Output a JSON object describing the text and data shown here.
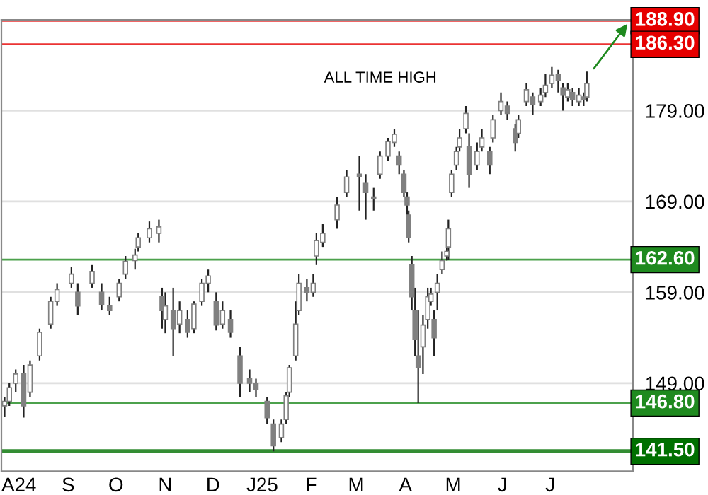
{
  "chart_data": {
    "type": "candlestick",
    "annotations": [
      "ALL TIME HIGH"
    ],
    "color": "#808080",
    "x": [
      "2024-07-23",
      "2024-07-26",
      "2024-07-30",
      "2024-08-04",
      "2024-08-08",
      "2024-08-14",
      "2024-08-21",
      "2024-08-25",
      "2024-09-03",
      "2024-09-07",
      "2024-09-16",
      "2024-09-22",
      "2024-09-27",
      "2024-10-03",
      "2024-10-07",
      "2024-10-13",
      "2024-10-15",
      "2024-10-22",
      "2024-10-28",
      "2024-10-30",
      "2024-11-01",
      "2024-11-06",
      "2024-11-10",
      "2024-11-15",
      "2024-11-19",
      "2024-11-24",
      "2024-11-28",
      "2024-12-03",
      "2024-12-07",
      "2024-12-12",
      "2024-12-18",
      "2024-12-24",
      "2024-12-28",
      "2025-01-04",
      "2025-01-08",
      "2025-01-13",
      "2025-01-16",
      "2025-01-18",
      "2025-01-22",
      "2025-01-24",
      "2025-01-29",
      "2025-02-02",
      "2025-02-04",
      "2025-02-08",
      "2025-02-17",
      "2025-02-23",
      "2025-03-03",
      "2025-03-07",
      "2025-03-12",
      "2025-03-16",
      "2025-03-21",
      "2025-03-25",
      "2025-03-28",
      "2025-03-31",
      "2025-04-02",
      "2025-04-03",
      "2025-04-05",
      "2025-04-07",
      "2025-04-09",
      "2025-04-12",
      "2025-04-15",
      "2025-04-17",
      "2025-04-19",
      "2025-04-21",
      "2025-04-24",
      "2025-04-27",
      "2025-04-28",
      "2025-04-30",
      "2025-05-03",
      "2025-05-05",
      "2025-05-09",
      "2025-05-11",
      "2025-05-16",
      "2025-05-19",
      "2025-05-24",
      "2025-05-26",
      "2025-05-31",
      "2025-06-04",
      "2025-06-09",
      "2025-06-11",
      "2025-06-16",
      "2025-06-20",
      "2025-06-25",
      "2025-06-28",
      "2025-07-02",
      "2025-07-06",
      "2025-07-09",
      "2025-07-12",
      "2025-07-15",
      "2025-07-19",
      "2025-07-22",
      "2025-07-24"
    ],
    "ohlc": [
      [
        146.5,
        147.5,
        145.3,
        147.0
      ],
      [
        147.0,
        149.0,
        146.5,
        148.5
      ],
      [
        149.0,
        150.5,
        148.0,
        150.0
      ],
      [
        150.0,
        151.0,
        145.2,
        146.5
      ],
      [
        148.0,
        151.5,
        147.5,
        151.0
      ],
      [
        152.0,
        155.0,
        151.5,
        154.6
      ],
      [
        155.5,
        158.5,
        155.0,
        158.0
      ],
      [
        158.0,
        160.0,
        157.5,
        159.3
      ],
      [
        160.0,
        161.8,
        159.5,
        161.0
      ],
      [
        159.0,
        160.0,
        156.5,
        157.5
      ],
      [
        160.0,
        162.0,
        159.5,
        161.3
      ],
      [
        159.0,
        160.0,
        157.0,
        157.7
      ],
      [
        157.5,
        158.5,
        156.5,
        157.0
      ],
      [
        158.5,
        160.5,
        158.0,
        160.0
      ],
      [
        161.0,
        163.0,
        160.5,
        162.4
      ],
      [
        162.5,
        163.8,
        161.5,
        163.1
      ],
      [
        164.0,
        165.5,
        163.5,
        165.0
      ],
      [
        165.0,
        166.8,
        164.5,
        166.0
      ],
      [
        165.5,
        167.0,
        164.5,
        166.2
      ],
      [
        158.5,
        159.5,
        155.0,
        157.0
      ],
      [
        156.0,
        159.0,
        154.5,
        157.5
      ],
      [
        157.0,
        159.5,
        152.0,
        155.0
      ],
      [
        155.5,
        158.0,
        154.5,
        157.0
      ],
      [
        156.0,
        157.0,
        154.0,
        154.6
      ],
      [
        155.0,
        158.0,
        154.5,
        157.7
      ],
      [
        158.0,
        160.5,
        157.5,
        160.0
      ],
      [
        160.0,
        161.5,
        159.0,
        160.8
      ],
      [
        158.0,
        159.0,
        154.8,
        155.4
      ],
      [
        155.5,
        158.0,
        155.0,
        157.0
      ],
      [
        156.0,
        157.0,
        154.0,
        154.6
      ],
      [
        152.0,
        153.0,
        147.5,
        149.0
      ],
      [
        149.5,
        150.5,
        148.0,
        149.0
      ],
      [
        149.0,
        149.5,
        147.5,
        148.3
      ],
      [
        147.0,
        147.5,
        144.5,
        145.2
      ],
      [
        144.5,
        145.0,
        141.5,
        142.1
      ],
      [
        143.0,
        145.0,
        142.5,
        144.5
      ],
      [
        145.0,
        148.0,
        144.5,
        147.6
      ],
      [
        148.0,
        151.0,
        147.5,
        150.7
      ],
      [
        152.0,
        158.0,
        151.5,
        155.5
      ],
      [
        157.0,
        161.0,
        156.5,
        160.0
      ],
      [
        159.5,
        160.5,
        158.0,
        159.0
      ],
      [
        159.0,
        161.0,
        158.5,
        160.0
      ],
      [
        163.0,
        165.5,
        162.0,
        164.7
      ],
      [
        164.5,
        166.5,
        164.0,
        165.5
      ],
      [
        167.0,
        169.5,
        166.0,
        168.6
      ],
      [
        170.0,
        172.5,
        169.5,
        171.7
      ],
      [
        172.0,
        174.0,
        168.0,
        171.7
      ],
      [
        171.0,
        172.0,
        167.0,
        170.0
      ],
      [
        169.5,
        170.5,
        168.0,
        169.3
      ],
      [
        172.0,
        174.5,
        171.5,
        174.0
      ],
      [
        174.0,
        176.0,
        173.5,
        175.6
      ],
      [
        175.5,
        177.0,
        175.0,
        176.4
      ],
      [
        174.0,
        174.5,
        172.0,
        173.0
      ],
      [
        172.0,
        172.5,
        169.5,
        170.0
      ],
      [
        169.5,
        170.0,
        167.5,
        168.6
      ],
      [
        167.5,
        168.0,
        164.5,
        165.0
      ],
      [
        162.0,
        163.0,
        157.0,
        158.5
      ],
      [
        157.0,
        159.5,
        152.0,
        153.8
      ],
      [
        152.0,
        157.0,
        146.8,
        150.7
      ],
      [
        153.0,
        156.5,
        150.0,
        155.4
      ],
      [
        156.0,
        159.5,
        155.0,
        158.5
      ],
      [
        158.0,
        159.5,
        157.5,
        158.8
      ],
      [
        156.0,
        157.0,
        152.0,
        154.0
      ],
      [
        159.0,
        161.0,
        157.0,
        160.0
      ],
      [
        161.5,
        163.5,
        161.0,
        162.5
      ],
      [
        163.0,
        164.5,
        162.5,
        163.5
      ],
      [
        164.0,
        167.0,
        162.6,
        166.0
      ],
      [
        170.0,
        172.5,
        169.5,
        172.0
      ],
      [
        173.0,
        175.0,
        172.5,
        174.5
      ],
      [
        175.0,
        177.0,
        174.5,
        176.0
      ],
      [
        177.0,
        179.5,
        176.5,
        178.7
      ],
      [
        175.0,
        176.5,
        170.5,
        172.0
      ],
      [
        173.0,
        175.5,
        172.5,
        174.5
      ],
      [
        175.0,
        177.0,
        174.5,
        176.0
      ],
      [
        174.5,
        175.0,
        172.0,
        173.0
      ],
      [
        176.0,
        178.5,
        175.5,
        178.0
      ],
      [
        179.0,
        181.0,
        178.5,
        180.0
      ],
      [
        179.5,
        180.0,
        178.0,
        178.7
      ],
      [
        177.0,
        177.5,
        174.5,
        175.5
      ],
      [
        176.5,
        178.5,
        176.0,
        178.0
      ],
      [
        180.0,
        182.0,
        179.5,
        181.3
      ],
      [
        180.5,
        181.0,
        178.5,
        179.7
      ],
      [
        180.0,
        181.5,
        179.5,
        180.7
      ],
      [
        181.0,
        183.0,
        180.5,
        181.8
      ],
      [
        182.0,
        183.8,
        181.5,
        182.9
      ],
      [
        183.0,
        183.5,
        181.0,
        182.3
      ],
      [
        181.5,
        182.0,
        179.0,
        180.7
      ],
      [
        180.5,
        182.0,
        180.0,
        181.3
      ],
      [
        181.0,
        181.5,
        179.5,
        180.2
      ],
      [
        180.0,
        181.5,
        179.5,
        180.7
      ],
      [
        180.5,
        181.0,
        179.5,
        180.2
      ],
      [
        180.5,
        183.3,
        180.0,
        182.0
      ]
    ],
    "xlim": [
      "2024-07-21",
      "2025-08-22"
    ],
    "xticks": [
      {
        "value": "2024-08-01",
        "label": "A24"
      },
      {
        "value": "2024-09-01",
        "label": "S"
      },
      {
        "value": "2024-10-01",
        "label": "O"
      },
      {
        "value": "2024-11-01",
        "label": "N"
      },
      {
        "value": "2024-12-01",
        "label": "D"
      },
      {
        "value": "2025-01-01",
        "label": "J25"
      },
      {
        "value": "2025-02-01",
        "label": "F"
      },
      {
        "value": "2025-03-01",
        "label": "M"
      },
      {
        "value": "2025-04-01",
        "label": "A"
      },
      {
        "value": "2025-05-01",
        "label": "M"
      },
      {
        "value": "2025-06-01",
        "label": "J"
      },
      {
        "value": "2025-07-01",
        "label": "J"
      }
    ],
    "ylim": [
      139.3,
      189.0
    ],
    "yticks": [
      {
        "value": 149,
        "label": "149.00"
      },
      {
        "value": 159,
        "label": "159.00"
      },
      {
        "value": 169,
        "label": "169.00"
      },
      {
        "value": 179,
        "label": "179.00"
      }
    ],
    "grid": "y",
    "ref_lines": [
      {
        "axis": "y",
        "value": 188.9,
        "label": "188.90",
        "color": "#e60000"
      },
      {
        "axis": "y",
        "value": 186.3,
        "label": "186.30",
        "color": "#e60000"
      },
      {
        "axis": "y",
        "value": 162.6,
        "label": "162.60",
        "color": "#1f8a1f"
      },
      {
        "axis": "y",
        "value": 146.8,
        "label": "146.80",
        "color": "#1f8a1f"
      },
      {
        "axis": "y",
        "value": 141.5,
        "label": "141.50",
        "color": "#007000"
      }
    ]
  }
}
